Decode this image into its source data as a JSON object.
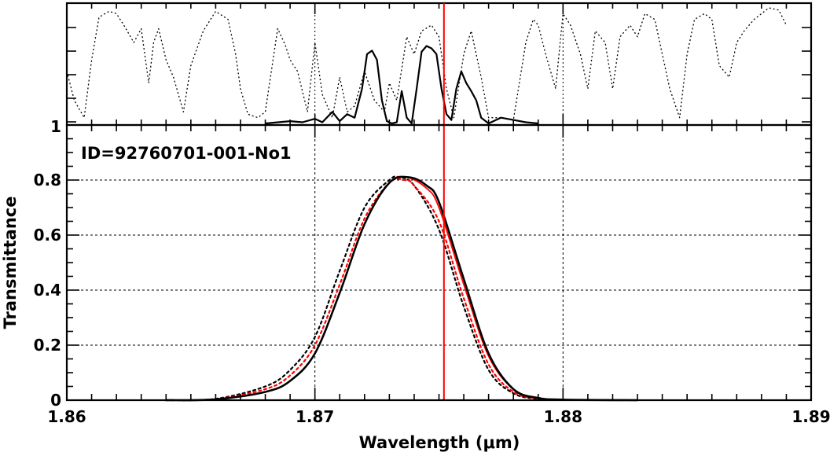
{
  "chart_data": [
    {
      "type": "line",
      "panel": "top",
      "x_range": [
        1.86,
        1.89
      ],
      "y_tick_labels": [
        "1"
      ],
      "grid": "vertical dotted lines at 1.87 and 1.88",
      "series": [
        {
          "style": "dotted black",
          "x": [
            1.86,
            1.8603,
            1.8607,
            1.861,
            1.8613,
            1.8617,
            1.862,
            1.8623,
            1.8627,
            1.863,
            1.8633,
            1.8635,
            1.8637,
            1.864,
            1.8643,
            1.8647,
            1.865,
            1.8655,
            1.866,
            1.8665,
            1.8668,
            1.867,
            1.8673,
            1.8677,
            1.868,
            1.8685,
            1.8688,
            1.869,
            1.8693,
            1.8697,
            1.87,
            1.8703,
            1.8707,
            1.871,
            1.8713,
            1.8716,
            1.872,
            1.8724,
            1.8728,
            1.873,
            1.8733,
            1.8737,
            1.874,
            1.8743,
            1.8747,
            1.875,
            1.8753,
            1.8756,
            1.876,
            1.8763,
            1.8767,
            1.877,
            1.8775,
            1.878,
            1.8785,
            1.8788,
            1.879,
            1.8793,
            1.8797,
            1.88,
            1.8803,
            1.8807,
            1.881,
            1.8813,
            1.8817,
            1.882,
            1.8823,
            1.8827,
            1.883,
            1.8833,
            1.8837,
            1.884,
            1.8843,
            1.8847,
            1.885,
            1.8853,
            1.8857,
            1.886,
            1.8863,
            1.8867,
            1.887,
            1.8873,
            1.8877,
            1.888,
            1.8883,
            1.8887,
            1.889
          ],
          "y": [
            0.45,
            0.2,
            0.05,
            0.55,
            0.92,
            0.97,
            0.95,
            0.85,
            0.7,
            0.82,
            0.35,
            0.7,
            0.82,
            0.55,
            0.4,
            0.1,
            0.5,
            0.8,
            0.97,
            0.9,
            0.6,
            0.3,
            0.08,
            0.05,
            0.1,
            0.82,
            0.68,
            0.55,
            0.45,
            0.1,
            0.7,
            0.25,
            0.05,
            0.4,
            0.1,
            0.15,
            0.45,
            0.2,
            0.1,
            0.35,
            0.2,
            0.75,
            0.6,
            0.8,
            0.85,
            0.75,
            0.3,
            0.05,
            0.6,
            0.8,
            0.4,
            0.05,
            0.05,
            0.03,
            0.7,
            0.9,
            0.85,
            0.6,
            0.3,
            0.95,
            0.85,
            0.6,
            0.3,
            0.8,
            0.7,
            0.3,
            0.75,
            0.85,
            0.75,
            0.95,
            0.9,
            0.6,
            0.3,
            0.05,
            0.6,
            0.9,
            0.95,
            0.9,
            0.5,
            0.4,
            0.7,
            0.8,
            0.9,
            0.95,
            1.0,
            0.98,
            0.85
          ]
        },
        {
          "style": "solid black",
          "x": [
            1.868,
            1.869,
            1.8695,
            1.87,
            1.8703,
            1.8707,
            1.871,
            1.8713,
            1.8716,
            1.8719,
            1.8721,
            1.8723,
            1.8725,
            1.8727,
            1.8729,
            1.8731,
            1.8733,
            1.8735,
            1.8737,
            1.8739,
            1.8741,
            1.8743,
            1.8745,
            1.8747,
            1.8749,
            1.8751,
            1.8753,
            1.8755,
            1.8757,
            1.8759,
            1.8761,
            1.8763,
            1.8765,
            1.8767,
            1.877,
            1.8775,
            1.878,
            1.8785,
            1.879
          ],
          "y": [
            0.0,
            0.02,
            0.01,
            0.04,
            0.01,
            0.1,
            0.02,
            0.08,
            0.05,
            0.3,
            0.6,
            0.63,
            0.55,
            0.2,
            0.02,
            0.0,
            0.01,
            0.28,
            0.05,
            0.0,
            0.3,
            0.62,
            0.67,
            0.65,
            0.6,
            0.3,
            0.08,
            0.03,
            0.3,
            0.45,
            0.35,
            0.28,
            0.2,
            0.05,
            0.0,
            0.05,
            0.03,
            0.01,
            0.0
          ]
        }
      ]
    },
    {
      "type": "line",
      "panel": "bottom",
      "xlabel": "Wavelength (μm)",
      "ylabel": "Transmittance",
      "xlim": [
        1.86,
        1.89
      ],
      "ylim": [
        0,
        1
      ],
      "x_ticks": [
        1.86,
        1.87,
        1.88,
        1.89
      ],
      "x_tick_labels": [
        "1.86",
        "1.87",
        "1.88",
        "1.89"
      ],
      "y_ticks": [
        0,
        0.2,
        0.4,
        0.6,
        0.8
      ],
      "y_tick_labels": [
        "0",
        "0.2",
        "0.4",
        "0.6",
        "0.8"
      ],
      "top_edge_label": "1",
      "grid": "dotted at y=0.2,0.4,0.6,0.8 and x=1.87,1.88",
      "annotation": "ID=92760701-001-No1",
      "vertical_marker": {
        "x": 1.8752,
        "color": "#ff0000"
      },
      "series": [
        {
          "style": "solid black",
          "color": "#000000",
          "center": 1.8738,
          "peak": 0.81,
          "x": [
            1.864,
            1.866,
            1.868,
            1.869,
            1.87,
            1.871,
            1.872,
            1.873,
            1.8738,
            1.8745,
            1.875,
            1.876,
            1.877,
            1.878,
            1.879,
            1.88,
            1.883
          ],
          "y": [
            0.0,
            0.003,
            0.03,
            0.07,
            0.17,
            0.39,
            0.64,
            0.79,
            0.81,
            0.78,
            0.72,
            0.44,
            0.17,
            0.04,
            0.008,
            0.002,
            0.0
          ]
        },
        {
          "style": "solid red",
          "color": "#ff0000",
          "center": 1.8737,
          "peak": 0.81,
          "x": [
            1.864,
            1.866,
            1.868,
            1.869,
            1.87,
            1.871,
            1.872,
            1.873,
            1.8737,
            1.8745,
            1.875,
            1.876,
            1.877,
            1.878,
            1.879,
            1.88,
            1.883
          ],
          "y": [
            0.0,
            0.003,
            0.03,
            0.07,
            0.17,
            0.39,
            0.64,
            0.79,
            0.81,
            0.77,
            0.7,
            0.42,
            0.16,
            0.04,
            0.008,
            0.002,
            0.0
          ]
        },
        {
          "style": "dotted black",
          "color": "#000000",
          "center": 1.8734,
          "peak": 0.81,
          "x": [
            1.864,
            1.866,
            1.868,
            1.869,
            1.87,
            1.871,
            1.872,
            1.873,
            1.8734,
            1.874,
            1.875,
            1.876,
            1.877,
            1.878,
            1.879,
            1.88,
            1.883
          ],
          "y": [
            0.0,
            0.005,
            0.05,
            0.11,
            0.23,
            0.47,
            0.7,
            0.8,
            0.81,
            0.78,
            0.62,
            0.34,
            0.11,
            0.025,
            0.005,
            0.001,
            0.0
          ]
        },
        {
          "style": "dotted red",
          "color": "#ff0000",
          "center": 1.8736,
          "peak": 0.8,
          "x": [
            1.864,
            1.866,
            1.868,
            1.869,
            1.87,
            1.871,
            1.872,
            1.873,
            1.8736,
            1.874,
            1.875,
            1.876,
            1.877,
            1.878,
            1.879,
            1.88,
            1.883
          ],
          "y": [
            0.0,
            0.004,
            0.04,
            0.09,
            0.2,
            0.42,
            0.66,
            0.79,
            0.8,
            0.78,
            0.65,
            0.37,
            0.13,
            0.03,
            0.006,
            0.001,
            0.0
          ]
        }
      ]
    }
  ]
}
